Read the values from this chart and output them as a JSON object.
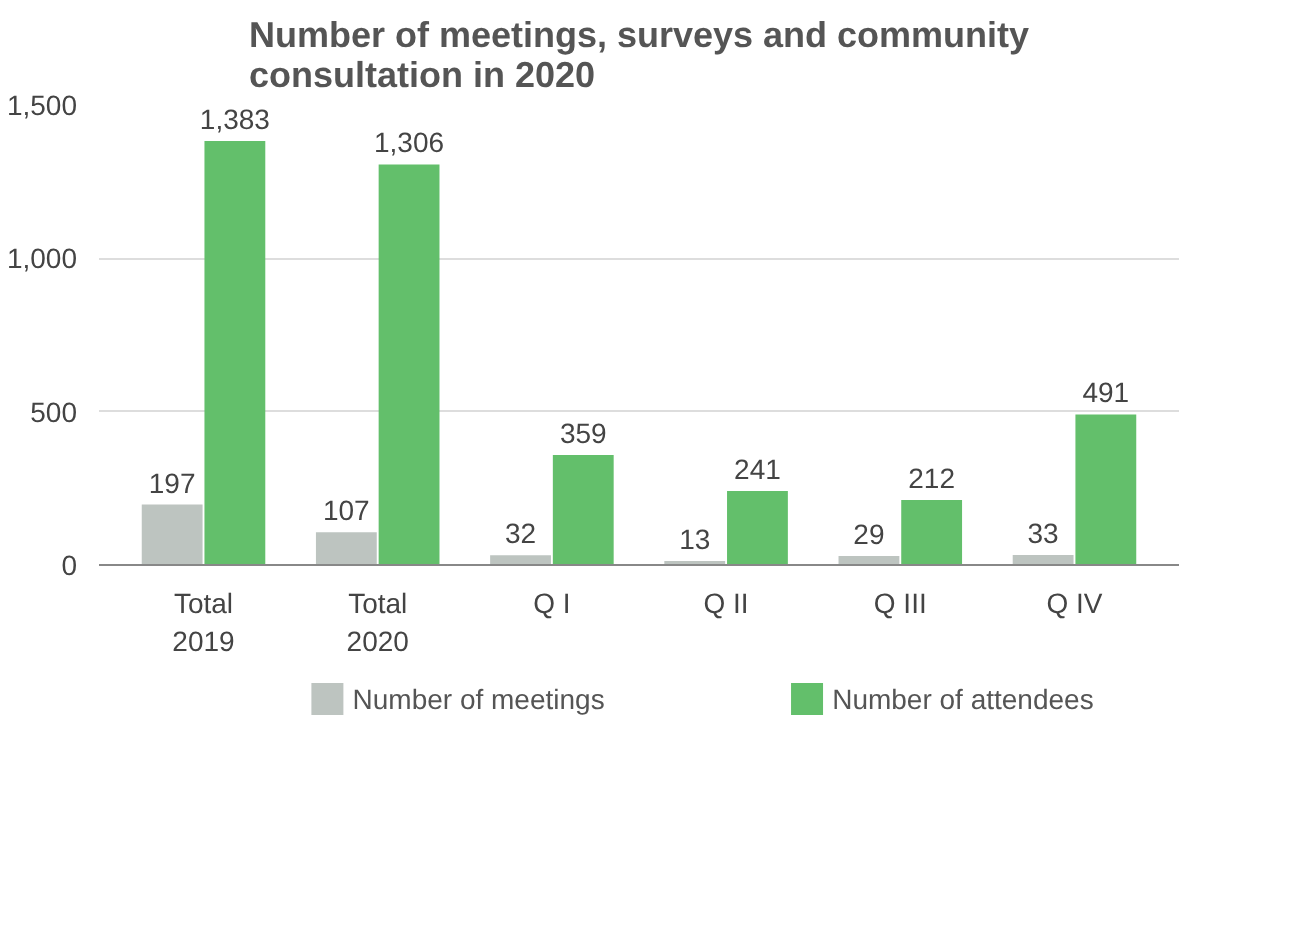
{
  "chart_data": {
    "type": "bar",
    "title": "Number of meetings, surveys and community\nconsultation in  2020",
    "categories": [
      "Total\n2019",
      "Total\n2020",
      "Q I",
      "Q II",
      "Q III",
      "Q IV"
    ],
    "series": [
      {
        "name": "Number of meetings",
        "color": "#bdc4c0",
        "values": [
          197,
          107,
          32,
          13,
          29,
          33
        ],
        "value_labels": [
          "197",
          "107",
          "32",
          "13",
          "29",
          "33"
        ]
      },
      {
        "name": "Number of attendees",
        "color": "#63bf6b",
        "values": [
          1383,
          1306,
          359,
          241,
          212,
          491
        ],
        "value_labels": [
          "1,383",
          "1,306",
          "359",
          "241",
          "212",
          "491"
        ]
      }
    ],
    "ylim": [
      0,
      1500
    ],
    "yticks": [
      0,
      {
        "value": 500,
        "label": "500"
      },
      {
        "value": 1000,
        "label": "1,000"
      },
      {
        "value": 1500,
        "label": "1,500"
      }
    ],
    "grid": "y",
    "legend": "bottom"
  }
}
